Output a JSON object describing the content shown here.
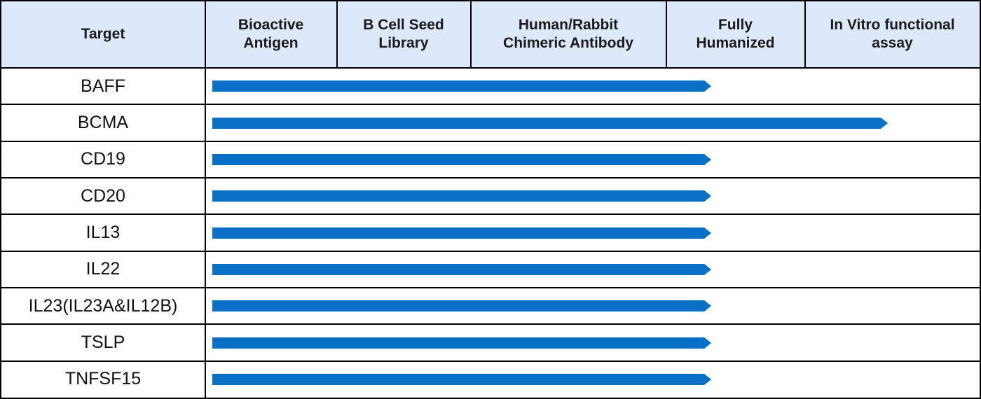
{
  "colors": {
    "header_bg": "#dde9fa",
    "bar": "#0a6fc7",
    "border": "#000000"
  },
  "chart_data": {
    "type": "table",
    "header": {
      "target": "Target",
      "stages": [
        "Bioactive\nAntigen",
        "B Cell Seed\nLibrary",
        "Human/Rabbit\nChimeric Antibody",
        "Fully\nHumanized",
        "In Vitro functional\nassay"
      ]
    },
    "rows": [
      {
        "target": "BAFF",
        "progress": 0.65
      },
      {
        "target": "BCMA",
        "progress": 0.88
      },
      {
        "target": "CD19",
        "progress": 0.65
      },
      {
        "target": "CD20",
        "progress": 0.65
      },
      {
        "target": "IL13",
        "progress": 0.65
      },
      {
        "target": "IL22",
        "progress": 0.65
      },
      {
        "target": "IL23(IL23A&IL12B)",
        "progress": 0.65
      },
      {
        "target": "TSLP",
        "progress": 0.65
      },
      {
        "target": "TNFSF15",
        "progress": 0.65
      }
    ]
  }
}
